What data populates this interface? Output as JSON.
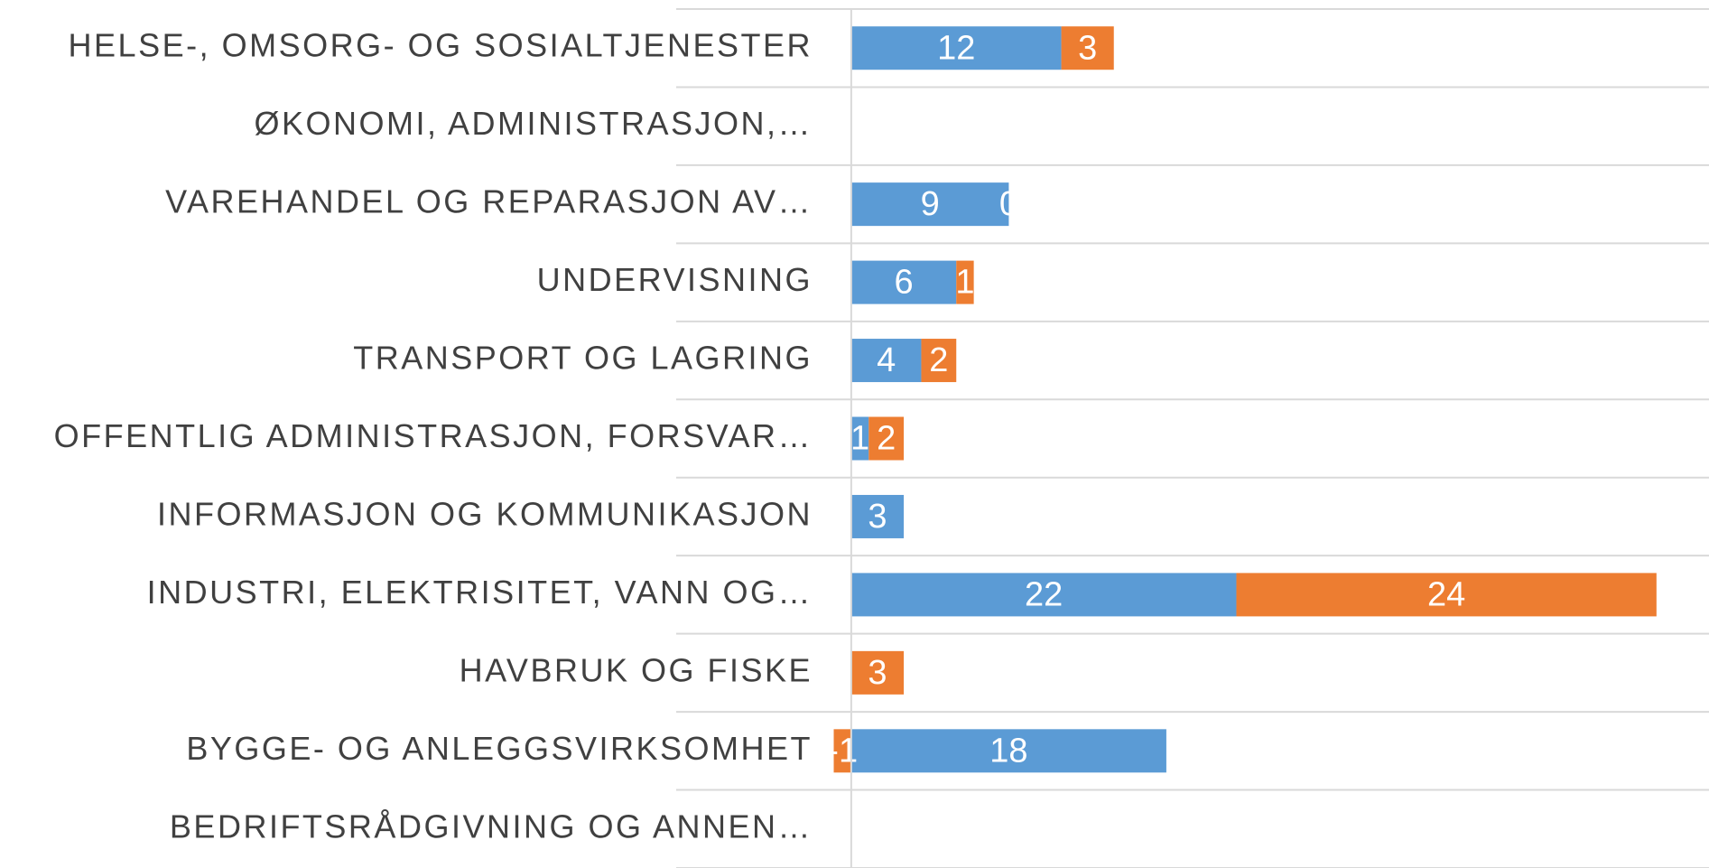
{
  "chart_data": {
    "type": "stacked-bar-horizontal",
    "categories": [
      "HELSE-, OMSORG- OG SOSIALTJENESTER",
      "ØKONOMI, ADMINISTRASJON,…",
      "VAREHANDEL OG REPARASJON AV…",
      "UNDERVISNING",
      "TRANSPORT OG LAGRING",
      "OFFENTLIG ADMINISTRASJON, FORSVAR…",
      "INFORMASJON OG KOMMUNIKASJON",
      "INDUSTRI, ELEKTRISITET, VANN OG…",
      "HAVBRUK OG FISKE",
      "BYGGE- OG ANLEGGSVIRKSOMHET",
      "BEDRIFTSRÅDGIVNING OG ANNEN…"
    ],
    "series": [
      {
        "color": "#5b9bd5",
        "values": [
          12,
          null,
          9,
          6,
          4,
          1,
          3,
          22,
          0,
          18,
          null
        ]
      },
      {
        "color": "#ed7d31",
        "values": [
          3,
          null,
          0,
          1,
          2,
          2,
          null,
          24,
          3,
          -1,
          null
        ]
      }
    ],
    "xlim": [
      -10,
      49
    ]
  }
}
